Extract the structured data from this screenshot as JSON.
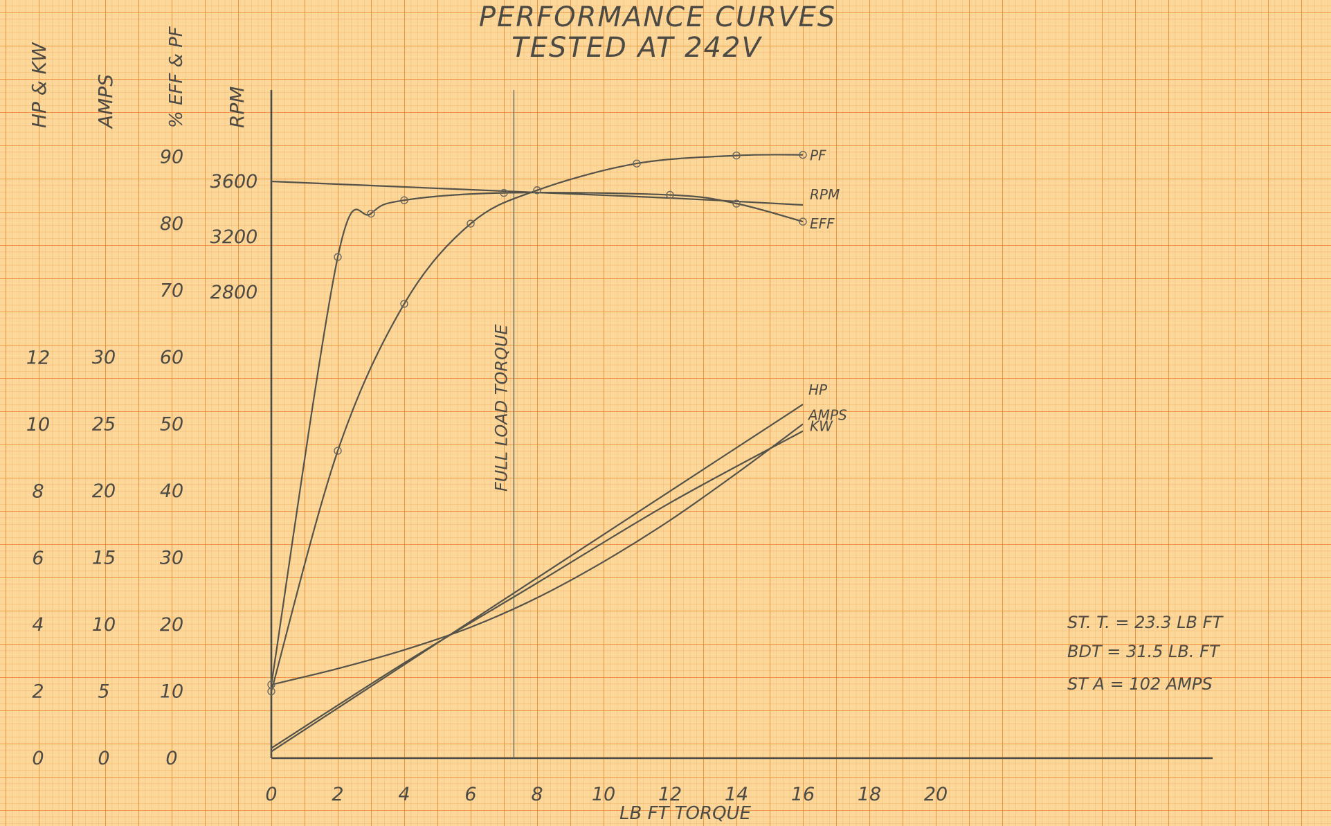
{
  "chart_data": {
    "type": "line",
    "title": "PERFORMANCE CURVES",
    "subtitle": "TESTED AT 242V",
    "xlabel": "LB FT TORQUE",
    "x_ticks": [
      "0",
      "2",
      "4",
      "6",
      "8",
      "10",
      "12",
      "14",
      "16",
      "18",
      "20"
    ],
    "xlim": [
      0,
      20
    ],
    "grid": true,
    "y_axes": [
      {
        "label": "HP & KW",
        "ticks": [
          "0",
          "2",
          "4",
          "6",
          "8",
          "10",
          "12"
        ]
      },
      {
        "label": "AMPS",
        "ticks": [
          "0",
          "5",
          "10",
          "15",
          "20",
          "25",
          "30"
        ]
      },
      {
        "label": "% EFF & PF",
        "ticks": [
          "0",
          "10",
          "20",
          "30",
          "40",
          "50",
          "60",
          "70",
          "80",
          "90"
        ]
      },
      {
        "label": "RPM",
        "ticks": [
          "2800",
          "3200",
          "3600"
        ]
      }
    ],
    "series": [
      {
        "name": "PF",
        "axis": "% EFF & PF",
        "unit": "%",
        "x": [
          0,
          2,
          4,
          6,
          8,
          11,
          14,
          16
        ],
        "y": [
          10,
          46,
          68,
          80,
          85,
          89,
          90.2,
          90.3
        ]
      },
      {
        "name": "EFF",
        "axis": "% EFF & PF",
        "unit": "%",
        "x": [
          0,
          2,
          3,
          4,
          7,
          12,
          14,
          16
        ],
        "y": [
          11,
          75,
          81.5,
          83.5,
          84.6,
          84.3,
          83,
          80.3
        ]
      },
      {
        "name": "RPM",
        "axis": "RPM",
        "unit": "rpm",
        "x": [
          0,
          4,
          8,
          12,
          16
        ],
        "y": [
          3600,
          3560,
          3520,
          3480,
          3430
        ]
      },
      {
        "name": "HP",
        "axis": "HP & KW",
        "unit": "hp",
        "x": [
          0,
          4,
          8,
          12,
          16
        ],
        "y": [
          0.2,
          2.8,
          5.4,
          8.0,
          10.6
        ]
      },
      {
        "name": "AMPS",
        "axis": "AMPS",
        "unit": "A",
        "x": [
          0,
          2,
          4,
          6,
          8,
          10,
          12,
          14,
          16
        ],
        "y": [
          5.5,
          6.7,
          8.1,
          9.8,
          12.0,
          14.7,
          17.8,
          21.3,
          25.0
        ]
      },
      {
        "name": "KW",
        "axis": "HP & KW",
        "unit": "kW",
        "x": [
          0,
          4,
          8,
          12,
          16
        ],
        "y": [
          0.3,
          2.85,
          5.25,
          7.65,
          9.8
        ]
      }
    ],
    "full_load_torque_label": "FULL LOAD TORQUE",
    "full_load_torque_x": 7.3,
    "notes": [
      "ST. T. = 23.3 LB FT",
      "BDT = 31.5 LB. FT",
      "ST A = 102 AMPS"
    ],
    "colors": {
      "paper": "#fbd79a",
      "grid_fine": "#f4a75a",
      "grid_major": "#e9822a",
      "pencil": "#4d4a44"
    }
  }
}
